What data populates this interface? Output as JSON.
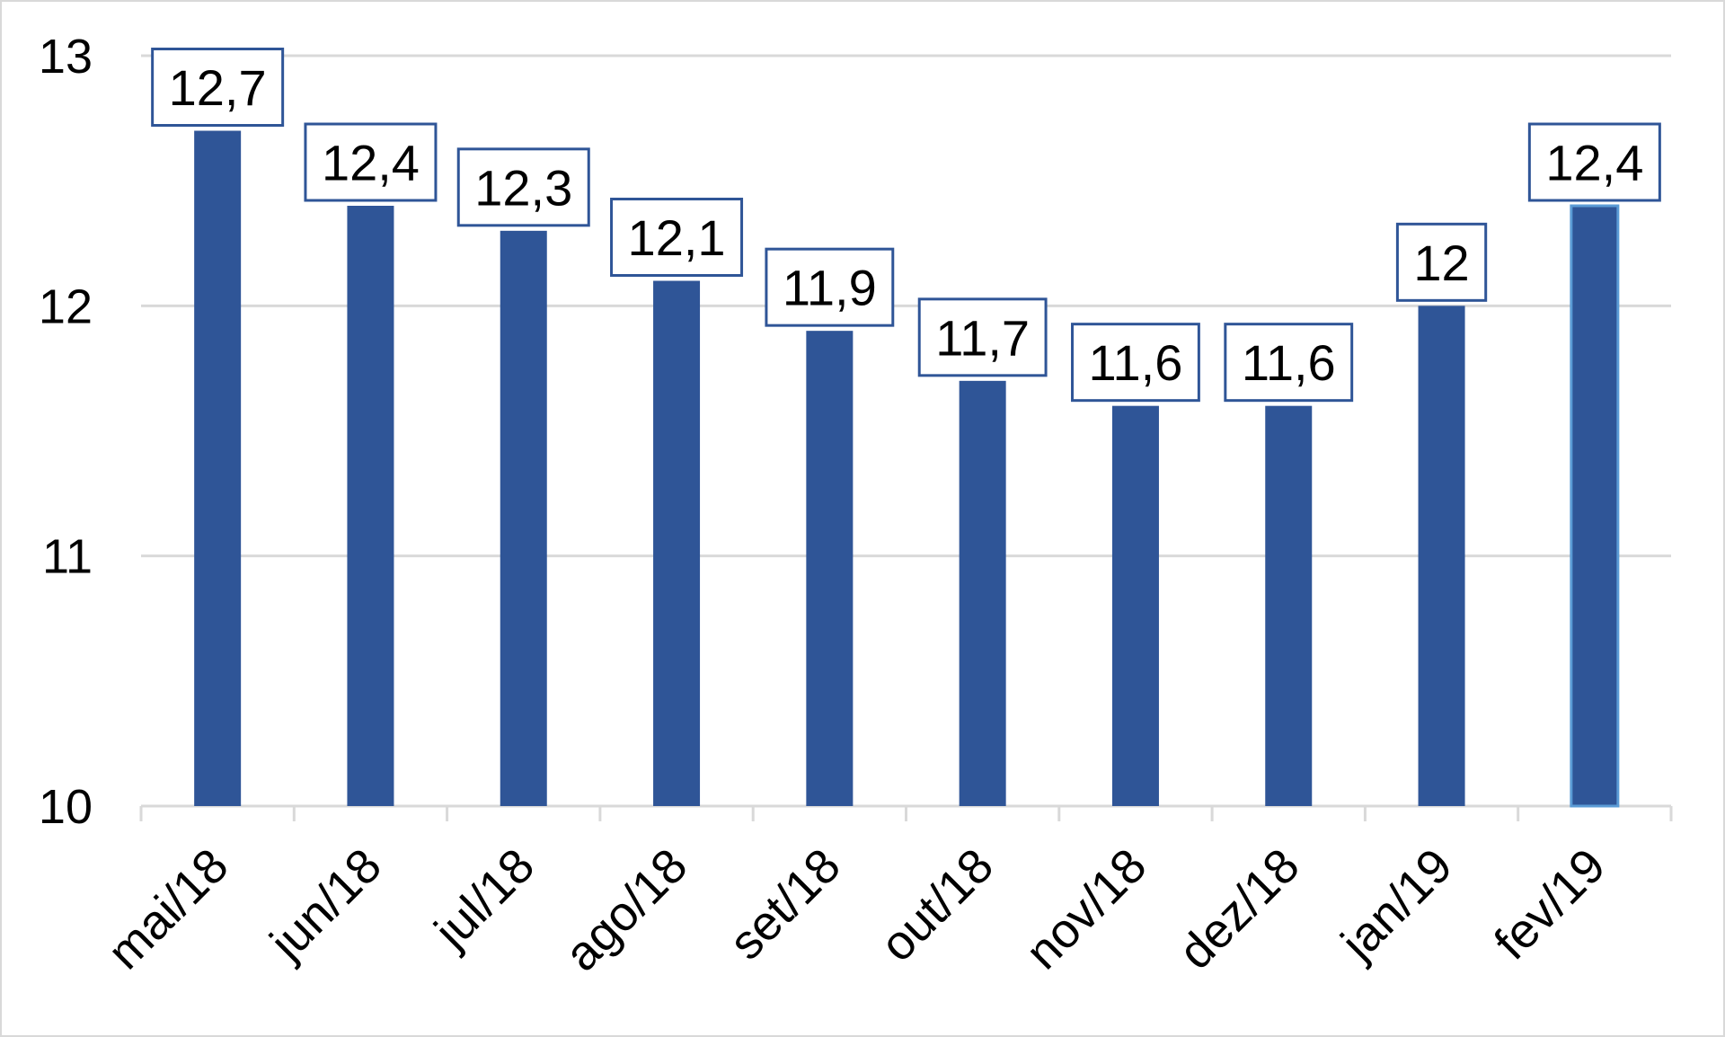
{
  "chart_data": {
    "type": "bar",
    "categories": [
      "mai/18",
      "jun/18",
      "jul/18",
      "ago/18",
      "set/18",
      "out/18",
      "nov/18",
      "dez/18",
      "jan/19",
      "fev/19"
    ],
    "values": [
      12.7,
      12.4,
      12.3,
      12.1,
      11.9,
      11.7,
      11.6,
      11.6,
      12.0,
      12.4
    ],
    "data_labels": [
      "12,7",
      "12,4",
      "12,3",
      "12,1",
      "11,9",
      "11,7",
      "11,6",
      "11,6",
      "12",
      "12,4"
    ],
    "y_ticks": [
      10,
      11,
      12,
      13
    ],
    "y_tick_labels": [
      "10",
      "11",
      "12",
      "13"
    ],
    "ylim": [
      10,
      13
    ],
    "title": "",
    "xlabel": "",
    "ylabel": "",
    "grid": true,
    "legend": "none",
    "colors": {
      "bar": "#2f5597",
      "last_bar_outline": "#5b9bd5",
      "label_border": "#2f5597",
      "grid": "#d9d9d9"
    }
  }
}
